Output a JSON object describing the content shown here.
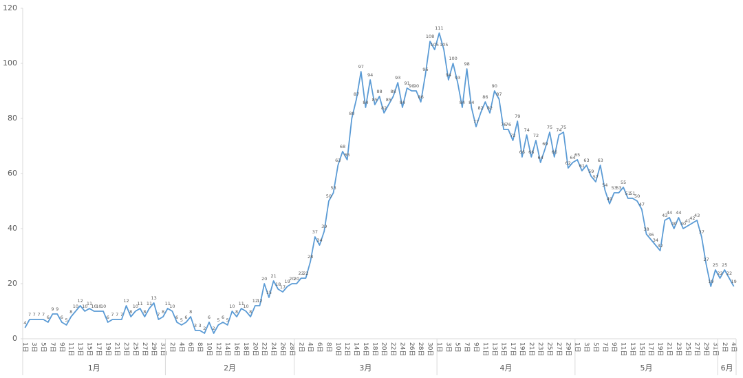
{
  "chart_data": {
    "type": "line",
    "categories": [
      "1日",
      null,
      "3日",
      null,
      "5日",
      null,
      "7日",
      null,
      "9日",
      null,
      "11日",
      null,
      "13日",
      null,
      "15日",
      null,
      "17日",
      null,
      "19日",
      null,
      "21日",
      null,
      "23日",
      null,
      "25日",
      null,
      "27日",
      null,
      "29日",
      null,
      "31日",
      null,
      "2日",
      null,
      "4日",
      null,
      "6日",
      null,
      "8日",
      null,
      "10日",
      null,
      "12日",
      null,
      "14日",
      null,
      "16日",
      null,
      "18日",
      null,
      "20日",
      null,
      "22日",
      null,
      "24日",
      null,
      "26日",
      null,
      "28日",
      null,
      "2日",
      null,
      "4日",
      null,
      "6日",
      null,
      "8日",
      null,
      "10日",
      null,
      "12日",
      null,
      "14日",
      null,
      "16日",
      null,
      "18日",
      null,
      "20日",
      null,
      "22日",
      null,
      "24日",
      null,
      "26日",
      null,
      "28日",
      null,
      "30日",
      null,
      "1日",
      null,
      "3日",
      null,
      "5日",
      null,
      "7日",
      null,
      "9日",
      null,
      "11日",
      null,
      "13日",
      null,
      "15日",
      null,
      "17日",
      null,
      "19日",
      null,
      "21日",
      null,
      "23日",
      null,
      "25日",
      null,
      "27日",
      null,
      "29日",
      null,
      "1日",
      null,
      "3日",
      null,
      "5日",
      null,
      "7日",
      null,
      "9日",
      null,
      "11日",
      null,
      "13日",
      null,
      "15日",
      null,
      "17日",
      null,
      "19日",
      null,
      "21日",
      null,
      "23日",
      null,
      "25日",
      null,
      "27日",
      null,
      "29日",
      null,
      "31日",
      null,
      "2日",
      null,
      "4日"
    ],
    "months": [
      "1月",
      "2月",
      "3月",
      "4月",
      "5月",
      "6月"
    ],
    "month_days": [
      31,
      28,
      31,
      30,
      31,
      4
    ],
    "series": [
      {
        "color": "#5b9bd5",
        "values": [
          4,
          7,
          7,
          7,
          7,
          6,
          9,
          9,
          6,
          5,
          8,
          10,
          12,
          10,
          11,
          10,
          10,
          10,
          6,
          7,
          7,
          7,
          12,
          8,
          10,
          11,
          8,
          11,
          13,
          7,
          8,
          11,
          10,
          6,
          5,
          6,
          8,
          3,
          3,
          2,
          6,
          2,
          5,
          6,
          5,
          10,
          8,
          11,
          10,
          8,
          12,
          12,
          20,
          15,
          21,
          18,
          17,
          19,
          20,
          20,
          22,
          22,
          28,
          37,
          34,
          39,
          50,
          53,
          63,
          68,
          65,
          80,
          87,
          97,
          84,
          94,
          85,
          88,
          82,
          85,
          88,
          93,
          84,
          91,
          90,
          90,
          86,
          96,
          108,
          105,
          111,
          105,
          94,
          100,
          93,
          84,
          98,
          84,
          77,
          82,
          86,
          82,
          90,
          87,
          76,
          76,
          72,
          79,
          66,
          74,
          66,
          72,
          64,
          69,
          75,
          66,
          74,
          75,
          62,
          64,
          65,
          61,
          63,
          59,
          57,
          63,
          54,
          49,
          53,
          53,
          55,
          51,
          51,
          50,
          47,
          38,
          36,
          34,
          32,
          43,
          44,
          40,
          44,
          40,
          41,
          42,
          43,
          37,
          27,
          19,
          25,
          22,
          25,
          22,
          19
        ]
      }
    ],
    "ylim": [
      0,
      120
    ],
    "yticks": [
      0,
      20,
      40,
      60,
      80,
      100,
      120
    ],
    "data_labels": true
  }
}
